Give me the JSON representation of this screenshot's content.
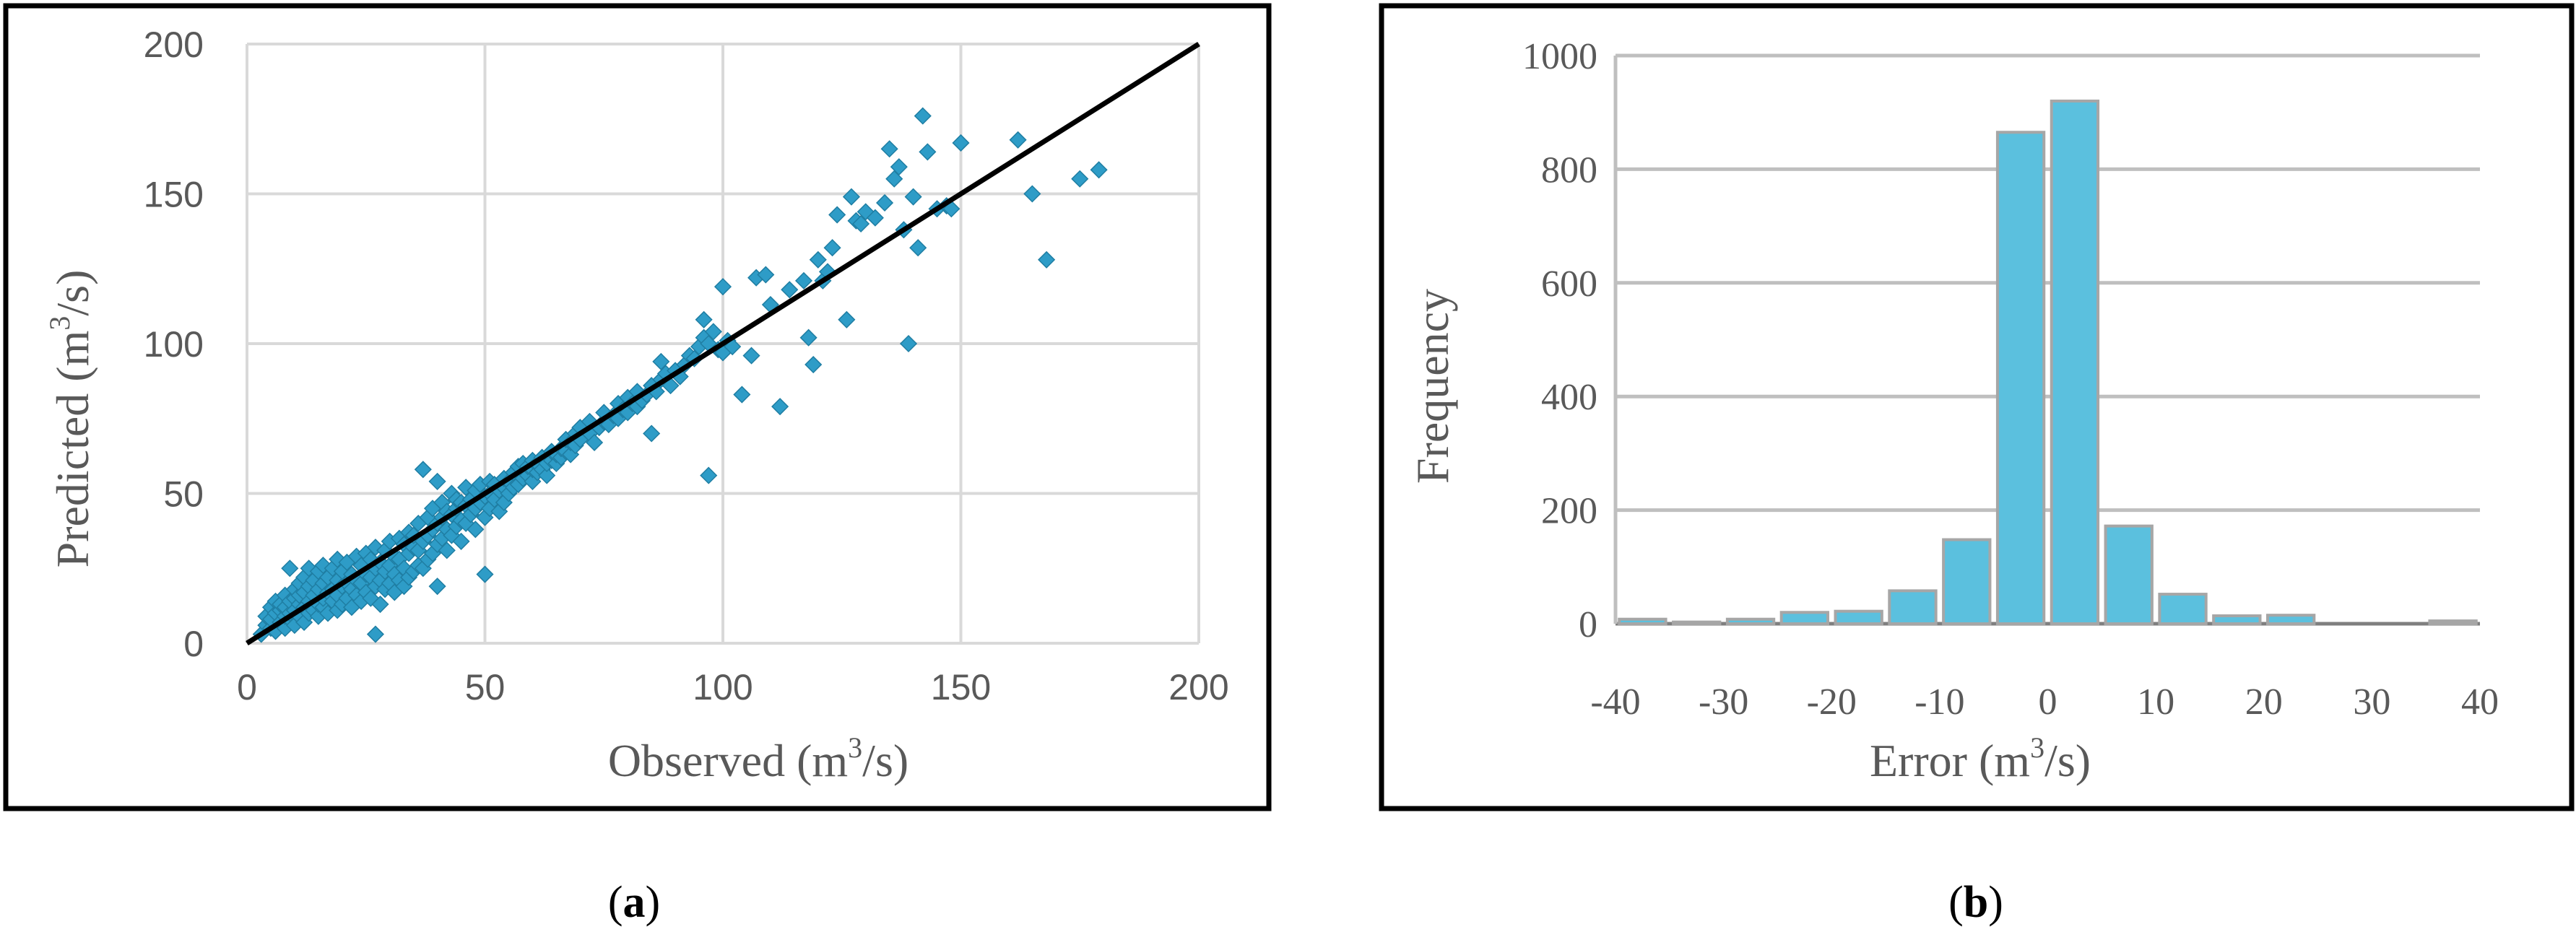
{
  "chart_data": [
    {
      "type": "scatter",
      "xlabel": "Observed  (m",
      "xlabel_sup": "3",
      "xlabel_tail": "/s)",
      "ylabel": "Predicted (m",
      "ylabel_sup": "3",
      "ylabel_tail": "/s)",
      "xlim": [
        0,
        200
      ],
      "ylim": [
        0,
        200
      ],
      "xticks": [
        "0",
        "50",
        "100",
        "150",
        "200"
      ],
      "yticks": [
        "0",
        "50",
        "100",
        "150",
        "200"
      ],
      "grid": true,
      "marker_color": "#2e9cc7",
      "line_color": "#000000",
      "reference_line": {
        "x": [
          0,
          200
        ],
        "y": [
          0,
          200
        ]
      },
      "points": [
        [
          3,
          3
        ],
        [
          4,
          6
        ],
        [
          4,
          9
        ],
        [
          5,
          5
        ],
        [
          5,
          8
        ],
        [
          5,
          12
        ],
        [
          6,
          4
        ],
        [
          6,
          10
        ],
        [
          6,
          14
        ],
        [
          7,
          7
        ],
        [
          7,
          11
        ],
        [
          7,
          13
        ],
        [
          8,
          5
        ],
        [
          8,
          9
        ],
        [
          8,
          12
        ],
        [
          8,
          16
        ],
        [
          9,
          8
        ],
        [
          9,
          10
        ],
        [
          9,
          14
        ],
        [
          9,
          25
        ],
        [
          10,
          6
        ],
        [
          10,
          11
        ],
        [
          10,
          15
        ],
        [
          10,
          18
        ],
        [
          11,
          9
        ],
        [
          11,
          13
        ],
        [
          11,
          16
        ],
        [
          11,
          20
        ],
        [
          12,
          7
        ],
        [
          12,
          12
        ],
        [
          12,
          17
        ],
        [
          12,
          22
        ],
        [
          13,
          10
        ],
        [
          13,
          14
        ],
        [
          13,
          19
        ],
        [
          13,
          25
        ],
        [
          14,
          11
        ],
        [
          14,
          16
        ],
        [
          14,
          21
        ],
        [
          15,
          9
        ],
        [
          15,
          13
        ],
        [
          15,
          18
        ],
        [
          15,
          24
        ],
        [
          16,
          12
        ],
        [
          16,
          15
        ],
        [
          16,
          20
        ],
        [
          16,
          26
        ],
        [
          17,
          10
        ],
        [
          17,
          17
        ],
        [
          17,
          22
        ],
        [
          18,
          14
        ],
        [
          18,
          18
        ],
        [
          18,
          25
        ],
        [
          19,
          11
        ],
        [
          19,
          16
        ],
        [
          19,
          21
        ],
        [
          19,
          28
        ],
        [
          20,
          13
        ],
        [
          20,
          19
        ],
        [
          20,
          24
        ],
        [
          21,
          15
        ],
        [
          21,
          20
        ],
        [
          21,
          27
        ],
        [
          22,
          12
        ],
        [
          22,
          18
        ],
        [
          22,
          23
        ],
        [
          23,
          16
        ],
        [
          23,
          21
        ],
        [
          23,
          29
        ],
        [
          24,
          14
        ],
        [
          24,
          20
        ],
        [
          24,
          26
        ],
        [
          25,
          17
        ],
        [
          25,
          23
        ],
        [
          25,
          30
        ],
        [
          26,
          15
        ],
        [
          26,
          22
        ],
        [
          26,
          28
        ],
        [
          27,
          3
        ],
        [
          27,
          19
        ],
        [
          27,
          25
        ],
        [
          27,
          32
        ],
        [
          28,
          13
        ],
        [
          28,
          21
        ],
        [
          28,
          27
        ],
        [
          29,
          18
        ],
        [
          29,
          24
        ],
        [
          29,
          31
        ],
        [
          30,
          20
        ],
        [
          30,
          26
        ],
        [
          30,
          34
        ],
        [
          31,
          17
        ],
        [
          31,
          23
        ],
        [
          31,
          29
        ],
        [
          32,
          21
        ],
        [
          32,
          28
        ],
        [
          32,
          35
        ],
        [
          33,
          19
        ],
        [
          33,
          25
        ],
        [
          33,
          33
        ],
        [
          34,
          22
        ],
        [
          34,
          30
        ],
        [
          34,
          37
        ],
        [
          35,
          24
        ],
        [
          35,
          32
        ],
        [
          35,
          36
        ],
        [
          36,
          26
        ],
        [
          36,
          31
        ],
        [
          36,
          40
        ],
        [
          37,
          25
        ],
        [
          37,
          34
        ],
        [
          37,
          58
        ],
        [
          38,
          28
        ],
        [
          38,
          36
        ],
        [
          38,
          42
        ],
        [
          39,
          30
        ],
        [
          39,
          38
        ],
        [
          39,
          45
        ],
        [
          40,
          19
        ],
        [
          40,
          33
        ],
        [
          40,
          40
        ],
        [
          40,
          54
        ],
        [
          41,
          35
        ],
        [
          41,
          42
        ],
        [
          41,
          47
        ],
        [
          42,
          31
        ],
        [
          42,
          38
        ],
        [
          42,
          44
        ],
        [
          43,
          36
        ],
        [
          43,
          43
        ],
        [
          43,
          50
        ],
        [
          44,
          39
        ],
        [
          44,
          45
        ],
        [
          44,
          48
        ],
        [
          45,
          34
        ],
        [
          45,
          41
        ],
        [
          45,
          47
        ],
        [
          46,
          40
        ],
        [
          46,
          46
        ],
        [
          46,
          52
        ],
        [
          47,
          43
        ],
        [
          47,
          48
        ],
        [
          48,
          38
        ],
        [
          48,
          45
        ],
        [
          48,
          51
        ],
        [
          49,
          47
        ],
        [
          49,
          53
        ],
        [
          50,
          42
        ],
        [
          50,
          49
        ],
        [
          50,
          23
        ],
        [
          51,
          45
        ],
        [
          51,
          50
        ],
        [
          51,
          54
        ],
        [
          52,
          48
        ],
        [
          52,
          53
        ],
        [
          53,
          44
        ],
        [
          53,
          51
        ],
        [
          54,
          47
        ],
        [
          54,
          52
        ],
        [
          54,
          55
        ],
        [
          55,
          50
        ],
        [
          55,
          54
        ],
        [
          56,
          52
        ],
        [
          56,
          57
        ],
        [
          57,
          53
        ],
        [
          57,
          59
        ],
        [
          58,
          55
        ],
        [
          58,
          60
        ],
        [
          59,
          56
        ],
        [
          59,
          59
        ],
        [
          60,
          54
        ],
        [
          60,
          58
        ],
        [
          60,
          61
        ],
        [
          61,
          57
        ],
        [
          61,
          60
        ],
        [
          62,
          58
        ],
        [
          62,
          62
        ],
        [
          63,
          56
        ],
        [
          63,
          60
        ],
        [
          64,
          61
        ],
        [
          64,
          64
        ],
        [
          65,
          60
        ],
        [
          65,
          63
        ],
        [
          66,
          62
        ],
        [
          66,
          65
        ],
        [
          67,
          64
        ],
        [
          67,
          68
        ],
        [
          68,
          63
        ],
        [
          68,
          67
        ],
        [
          69,
          66
        ],
        [
          69,
          70
        ],
        [
          70,
          68
        ],
        [
          70,
          72
        ],
        [
          72,
          70
        ],
        [
          72,
          74
        ],
        [
          73,
          67
        ],
        [
          74,
          72
        ],
        [
          75,
          74
        ],
        [
          75,
          77
        ],
        [
          76,
          73
        ],
        [
          77,
          76
        ],
        [
          78,
          75
        ],
        [
          78,
          80
        ],
        [
          79,
          78
        ],
        [
          80,
          77
        ],
        [
          80,
          82
        ],
        [
          81,
          80
        ],
        [
          82,
          79
        ],
        [
          82,
          84
        ],
        [
          83,
          81
        ],
        [
          84,
          83
        ],
        [
          85,
          70
        ],
        [
          85,
          86
        ],
        [
          86,
          84
        ],
        [
          87,
          88
        ],
        [
          87,
          94
        ],
        [
          88,
          90
        ],
        [
          89,
          86
        ],
        [
          90,
          91
        ],
        [
          91,
          89
        ],
        [
          92,
          93
        ],
        [
          93,
          96
        ],
        [
          94,
          95
        ],
        [
          95,
          99
        ],
        [
          96,
          102
        ],
        [
          96,
          108
        ],
        [
          97,
          56
        ],
        [
          97,
          100
        ],
        [
          98,
          104
        ],
        [
          99,
          98
        ],
        [
          100,
          97
        ],
        [
          100,
          119
        ],
        [
          101,
          101
        ],
        [
          102,
          99
        ],
        [
          104,
          83
        ],
        [
          106,
          96
        ],
        [
          107,
          122
        ],
        [
          109,
          123
        ],
        [
          110,
          113
        ],
        [
          112,
          79
        ],
        [
          114,
          118
        ],
        [
          117,
          121
        ],
        [
          118,
          102
        ],
        [
          119,
          93
        ],
        [
          120,
          128
        ],
        [
          121,
          121
        ],
        [
          122,
          124
        ],
        [
          123,
          132
        ],
        [
          124,
          143
        ],
        [
          126,
          108
        ],
        [
          127,
          149
        ],
        [
          128,
          141
        ],
        [
          129,
          140
        ],
        [
          130,
          144
        ],
        [
          132,
          142
        ],
        [
          134,
          147
        ],
        [
          135,
          165
        ],
        [
          136,
          155
        ],
        [
          137,
          159
        ],
        [
          138,
          138
        ],
        [
          139,
          100
        ],
        [
          140,
          149
        ],
        [
          141,
          132
        ],
        [
          142,
          176
        ],
        [
          143,
          164
        ],
        [
          145,
          145
        ],
        [
          147,
          146
        ],
        [
          148,
          145
        ],
        [
          150,
          167
        ],
        [
          162,
          168
        ],
        [
          165,
          150
        ],
        [
          168,
          128
        ],
        [
          175,
          155
        ],
        [
          179,
          158
        ]
      ]
    },
    {
      "type": "bar",
      "xlabel": "Error (m",
      "xlabel_sup": "3",
      "xlabel_tail": "/s)",
      "ylabel": "Frequency",
      "xlim": [
        -40,
        40
      ],
      "ylim": [
        0,
        1000
      ],
      "xticks": [
        "-40",
        "-30",
        "-20",
        "-10",
        "0",
        "10",
        "20",
        "30",
        "40"
      ],
      "yticks": [
        "0",
        "200",
        "400",
        "600",
        "800",
        "1000"
      ],
      "grid": true,
      "bar_color": "#5bc0de",
      "bar_edge_color": "#a6a6a6",
      "bin_centers": [
        -37.5,
        -32.5,
        -27.5,
        -22.5,
        -17.5,
        -12.5,
        -7.5,
        -2.5,
        2.5,
        7.5,
        12.5,
        17.5,
        22.5,
        27.5,
        32.5,
        37.5
      ],
      "values": [
        8,
        3,
        8,
        20,
        22,
        58,
        148,
        865,
        920,
        172,
        52,
        14,
        15,
        0,
        0,
        5
      ]
    }
  ],
  "labels": {
    "a_open": "(",
    "a_letter": "a",
    "a_close": ")",
    "b_open": "(",
    "b_letter": "b",
    "b_close": ")"
  }
}
